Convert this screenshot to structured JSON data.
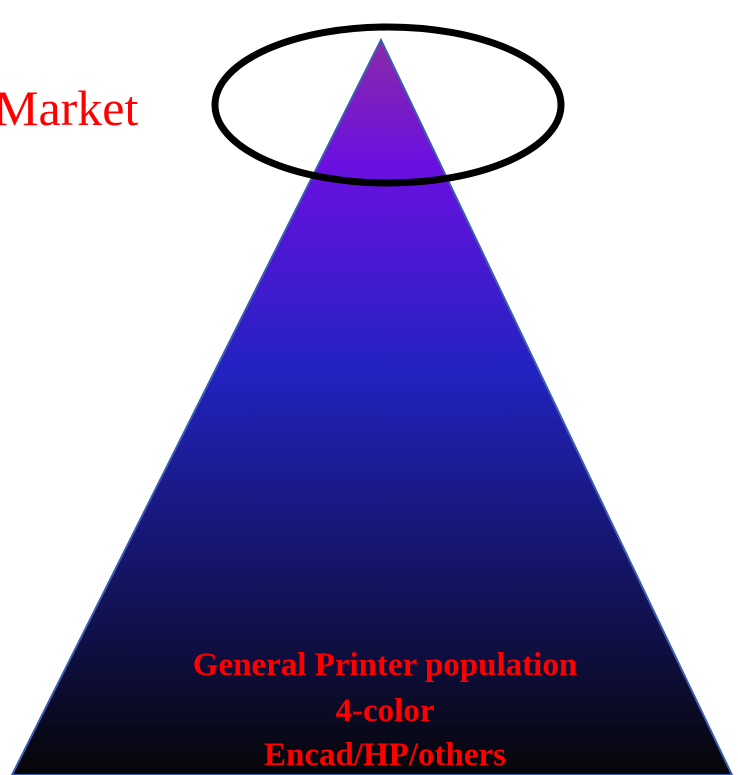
{
  "diagram": {
    "type": "pyramid",
    "top_label": "Market",
    "base_text": {
      "line1": "General Printer population",
      "line2": "4-color",
      "line3": "Encad/HP/others"
    },
    "colors": {
      "label_text": "#ff0000",
      "gradient_top": "#8a2aa8",
      "gradient_upper": "#6a10e0",
      "gradient_mid": "#2222c0",
      "gradient_bottom": "#060608",
      "outline": "#3a5fb0",
      "ellipse_stroke": "#000000"
    }
  }
}
